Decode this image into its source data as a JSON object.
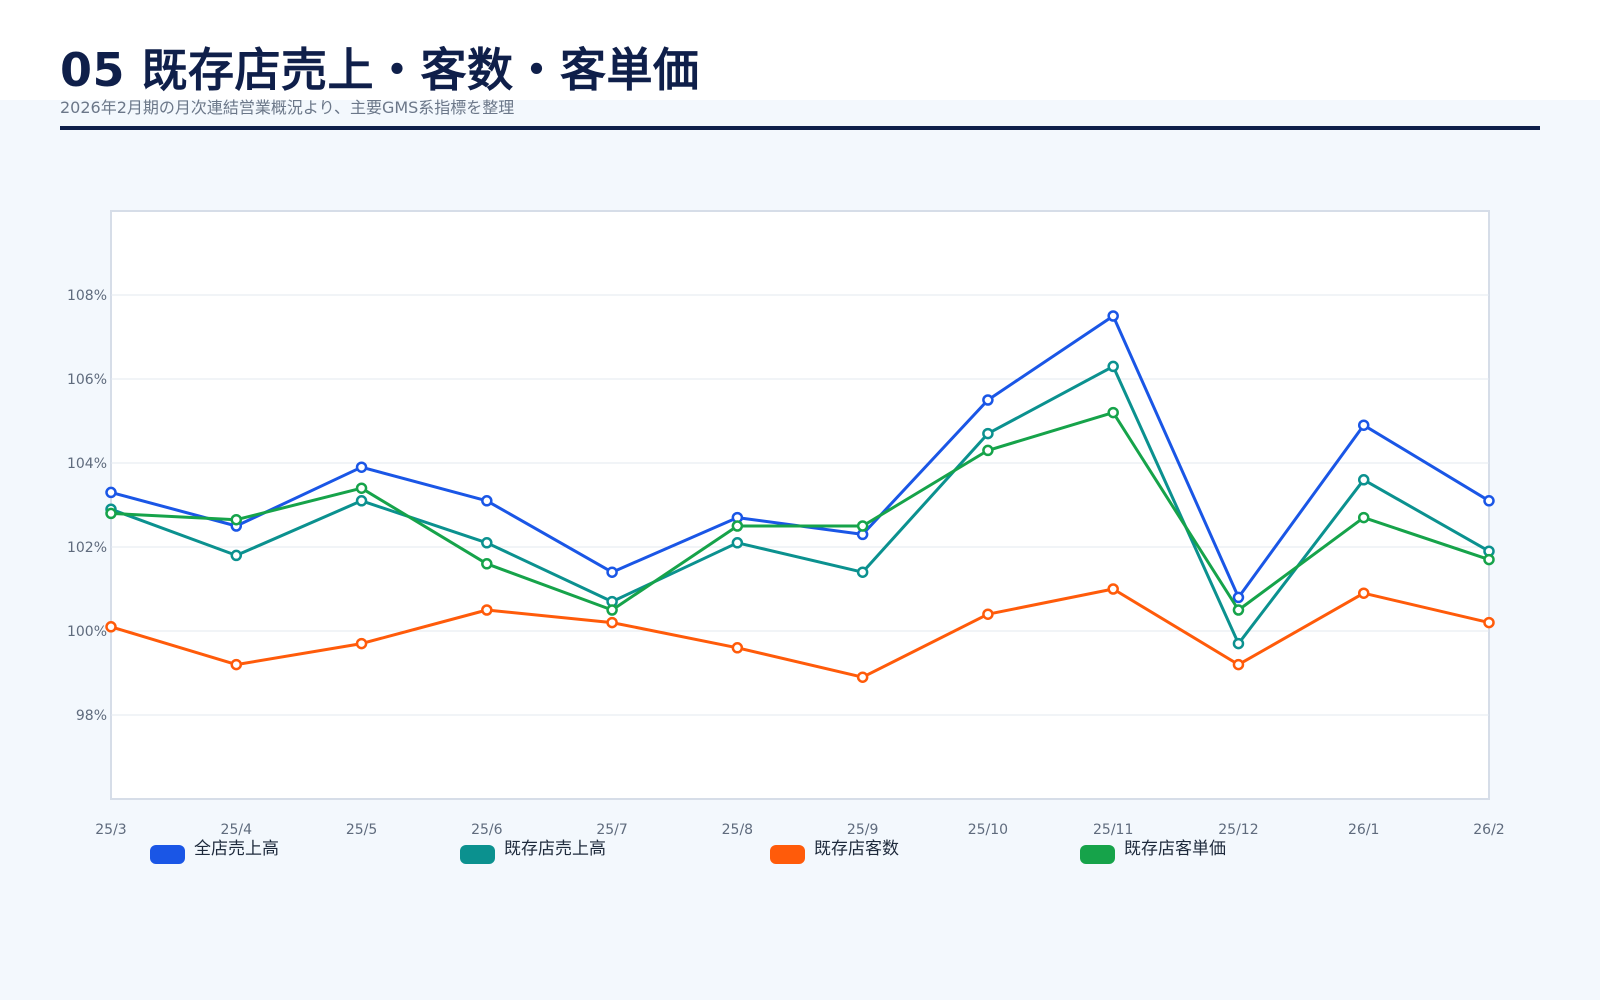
{
  "header": {
    "title": "05 既存店売上・客数・客単価",
    "subtitle": "2026年2月期の月次連結営業概況より、主要GMS系指標を整理"
  },
  "chart_data": {
    "type": "line",
    "categories": [
      "25/3",
      "25/4",
      "25/5",
      "25/6",
      "25/7",
      "25/8",
      "25/9",
      "25/10",
      "25/11",
      "25/12",
      "26/1",
      "26/2"
    ],
    "ylim": [
      96,
      110
    ],
    "yticks": [
      98,
      100,
      102,
      104,
      106,
      108
    ],
    "ytick_labels": [
      "98%",
      "100%",
      "102%",
      "104%",
      "106%",
      "108%"
    ],
    "grid": true,
    "legend_position": "bottom",
    "series": [
      {
        "name": "全店売上高",
        "color": "#1a56e6",
        "values": [
          103.3,
          102.5,
          103.9,
          103.1,
          101.4,
          102.7,
          102.3,
          105.5,
          107.5,
          100.8,
          104.9,
          103.1
        ]
      },
      {
        "name": "既存店売上高",
        "color": "#0b918f",
        "values": [
          102.9,
          101.8,
          103.1,
          102.1,
          100.7,
          102.1,
          101.4,
          104.7,
          106.3,
          99.7,
          103.6,
          101.9
        ]
      },
      {
        "name": "既存店客数",
        "color": "#ff5b0a",
        "values": [
          100.1,
          99.2,
          99.7,
          100.5,
          100.2,
          99.6,
          98.9,
          100.4,
          101.0,
          99.2,
          100.9,
          100.2
        ]
      },
      {
        "name": "既存店客単価",
        "color": "#16a34a",
        "values": [
          102.8,
          102.65,
          103.4,
          101.6,
          100.5,
          102.5,
          102.5,
          104.3,
          105.2,
          100.5,
          102.7,
          101.7
        ]
      }
    ]
  }
}
